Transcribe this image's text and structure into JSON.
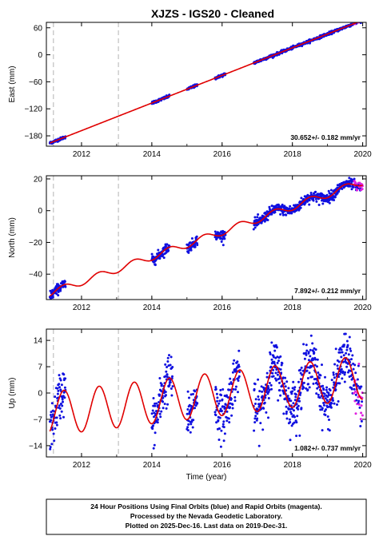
{
  "chart_data": [
    {
      "type": "scatter",
      "title": "XJZS  - IGS20 - Cleaned",
      "xlabel": "",
      "ylabel": "East (mm)",
      "xlim": [
        2011.0,
        2020.1
      ],
      "ylim": [
        -203,
        72
      ],
      "yticks": [
        60,
        0,
        -60,
        -120,
        -180
      ],
      "xticks": [
        2012,
        2014,
        2016,
        2018,
        2020
      ],
      "rate_label": "30.652+/- 0.182 mm/yr",
      "vertical_dashes": [
        2011.2,
        2013.05
      ],
      "model": {
        "x0": 2011.1,
        "y0": -196,
        "slope": 30.652,
        "amp": 0,
        "x_start": 2011.1,
        "x_end": 2020.0
      },
      "data_segments": [
        [
          2011.1,
          2011.55
        ],
        [
          2014.0,
          2014.5
        ],
        [
          2015.0,
          2015.3
        ],
        [
          2015.8,
          2016.1
        ],
        [
          2016.9,
          2020.0
        ]
      ],
      "noise": 1.5
    },
    {
      "type": "scatter",
      "title": "",
      "xlabel": "",
      "ylabel": "North (mm)",
      "xlim": [
        2011.0,
        2020.1
      ],
      "ylim": [
        -56,
        22
      ],
      "yticks": [
        20,
        0,
        -20,
        -40
      ],
      "xticks": [
        2012,
        2014,
        2016,
        2018,
        2020
      ],
      "rate_label": "7.892+/- 0.212 mm/yr",
      "vertical_dashes": [
        2011.2,
        2013.05
      ],
      "model": {
        "x0": 2011.1,
        "y0": -52,
        "slope": 7.892,
        "amp": 2.2,
        "x_start": 2011.1,
        "x_end": 2020.0
      },
      "data_segments": [
        [
          2011.1,
          2011.55
        ],
        [
          2014.0,
          2014.5
        ],
        [
          2015.0,
          2015.3
        ],
        [
          2015.8,
          2016.1
        ],
        [
          2016.9,
          2020.0
        ]
      ],
      "noise": 1.6
    },
    {
      "type": "scatter",
      "title": "",
      "xlabel": "Time (year)",
      "ylabel": "Up (mm)",
      "xlim": [
        2011.0,
        2020.1
      ],
      "ylim": [
        -17,
        17
      ],
      "yticks": [
        14,
        7,
        0,
        -7,
        -14
      ],
      "xticks": [
        2012,
        2014,
        2016,
        2018,
        2020
      ],
      "rate_label": "1.082+/- 0.737 mm/yr",
      "vertical_dashes": [
        2011.2,
        2013.05
      ],
      "model": {
        "x0": 2011.1,
        "y0": -5.5,
        "slope": 1.082,
        "amp": 5.8,
        "x_start": 2011.1,
        "x_end": 2020.0
      },
      "data_segments": [
        [
          2011.1,
          2011.55
        ],
        [
          2014.0,
          2014.6
        ],
        [
          2015.0,
          2015.3
        ],
        [
          2015.8,
          2016.5
        ],
        [
          2016.9,
          2020.0
        ]
      ],
      "noise": 3.2
    }
  ],
  "footer": {
    "line1": "24 Hour Positions Using Final Orbits (blue) and Rapid Orbits (magenta).",
    "line2": "Processed by the Nevada Geodetic Laboratory.",
    "line3": "Plotted on 2025-Dec-16. Last data on 2019-Dec-31."
  },
  "colors": {
    "final_orbit_points": "#1010e0",
    "rapid_orbit_points": "#e020e0",
    "model_line": "#e00000",
    "dashed_line": "#c0c0c0"
  }
}
